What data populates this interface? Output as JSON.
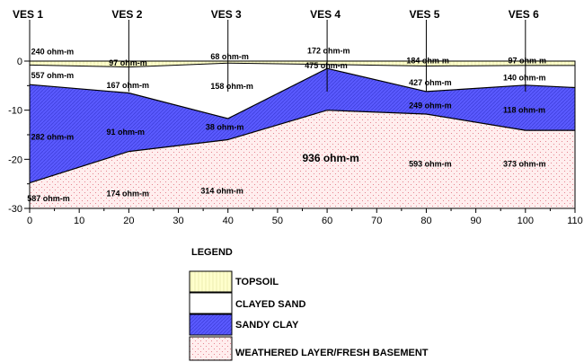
{
  "ves_stations": [
    {
      "label": "VES 1",
      "x": 0
    },
    {
      "label": "VES 2",
      "x": 20
    },
    {
      "label": "VES 3",
      "x": 40
    },
    {
      "label": "VES 4",
      "x": 60
    },
    {
      "label": "VES 5",
      "x": 80
    },
    {
      "label": "VES 6",
      "x": 100
    }
  ],
  "x_ticks": [
    "0",
    "10",
    "20",
    "30",
    "40",
    "50",
    "60",
    "70",
    "80",
    "90",
    "100",
    "110"
  ],
  "y_ticks": [
    "0",
    "-10",
    "-20",
    "-30"
  ],
  "axes": {
    "x_range": [
      0,
      110
    ],
    "y_range": [
      -30,
      0
    ]
  },
  "layers": {
    "topsoil_bottom": [
      [
        0,
        -0.8
      ],
      [
        20,
        -1.2
      ],
      [
        40,
        -0.4
      ],
      [
        60,
        -0.7
      ],
      [
        80,
        -1.0
      ],
      [
        100,
        -0.9
      ],
      [
        110,
        -0.9
      ]
    ],
    "clayed_sand_bottom": [
      [
        0,
        -4.8
      ],
      [
        20,
        -6.5
      ],
      [
        40,
        -11.7
      ],
      [
        60,
        -1.5
      ],
      [
        80,
        -6.2
      ],
      [
        100,
        -4.9
      ],
      [
        110,
        -5.4
      ]
    ],
    "sandy_clay_bottom": [
      [
        0,
        -24.8
      ],
      [
        20,
        -18.4
      ],
      [
        40,
        -16.0
      ],
      [
        60,
        -10.0
      ],
      [
        80,
        -10.8
      ],
      [
        100,
        -14.1
      ],
      [
        110,
        -14.1
      ]
    ]
  },
  "colors": {
    "topsoil": "#ffffcc",
    "sandy_clay": "#5a5aff",
    "weathered": "#ffeeee",
    "weathered_dot": "#e06a7a"
  },
  "resistivity_labels": [
    {
      "text": "240 ohm-m",
      "x": 0.3,
      "y": 1.4
    },
    {
      "text": "97 ohm-m",
      "x": 16,
      "y": -0.9
    },
    {
      "text": "68 ohm-m",
      "x": 36.5,
      "y": 0.4
    },
    {
      "text": "172 ohm-m",
      "x": 56,
      "y": 1.6
    },
    {
      "text": "184 ohm-m",
      "x": 76,
      "y": -0.5
    },
    {
      "text": "97 ohm-m",
      "x": 96.5,
      "y": -0.5
    },
    {
      "text": "557 ohm-m",
      "x": 0.3,
      "y": -3.5
    },
    {
      "text": "167 ohm-m",
      "x": 15.5,
      "y": -5.5
    },
    {
      "text": "158 ohm-m",
      "x": 36.5,
      "y": -5.7
    },
    {
      "text": "475 ohm-m",
      "x": 55.5,
      "y": -1.5
    },
    {
      "text": "427 ohm-m",
      "x": 76.5,
      "y": -4.9
    },
    {
      "text": "140 ohm-m",
      "x": 95.5,
      "y": -3.9
    },
    {
      "text": "282 ohm-m",
      "x": 0.3,
      "y": -16.0
    },
    {
      "text": "91 ohm-m",
      "x": 15.5,
      "y": -15.0
    },
    {
      "text": "38 ohm-m",
      "x": 35.5,
      "y": -14.0
    },
    {
      "text": "249 ohm-m",
      "x": 76.5,
      "y": -9.6
    },
    {
      "text": "118 ohm-m",
      "x": 95.5,
      "y": -10.5
    },
    {
      "text": "587 ohm-m",
      "x": -0.5,
      "y": -28.5
    },
    {
      "text": "174 ohm-m",
      "x": 15.5,
      "y": -27.5
    },
    {
      "text": "314 ohm-m",
      "x": 34.5,
      "y": -27.0
    },
    {
      "text": "593 ohm-m",
      "x": 76.5,
      "y": -21.5
    },
    {
      "text": "373 ohm-m",
      "x": 95.5,
      "y": -21.5
    }
  ],
  "big_label": {
    "text": "936 ohm-m",
    "x": 55,
    "y": -20.5
  },
  "legend": {
    "title": "LEGEND",
    "items": [
      "TOPSOIL",
      "CLAYED SAND",
      "SANDY CLAY",
      "WEATHERED LAYER/FRESH BASEMENT"
    ]
  }
}
